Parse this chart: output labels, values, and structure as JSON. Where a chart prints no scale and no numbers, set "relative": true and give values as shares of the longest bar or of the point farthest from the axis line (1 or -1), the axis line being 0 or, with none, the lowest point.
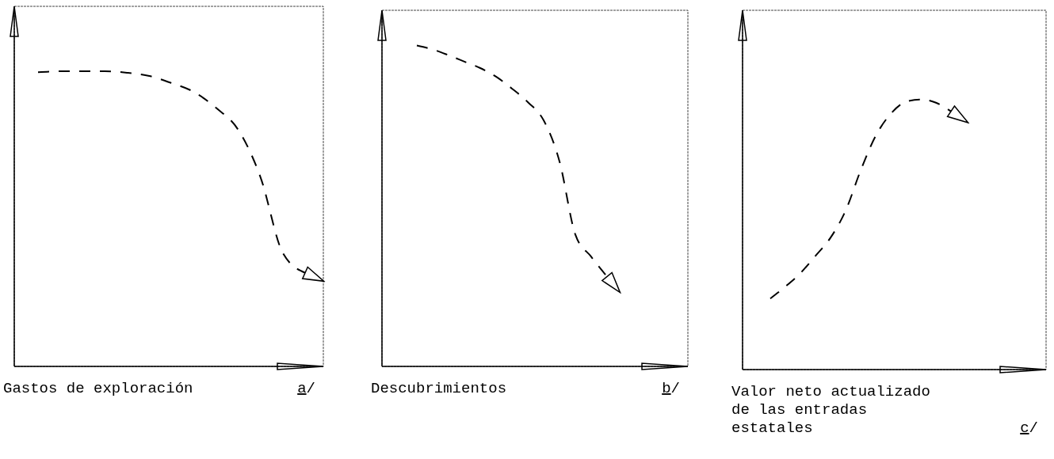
{
  "chart_data": [
    {
      "type": "line",
      "relative": true,
      "categories": [
        null,
        null,
        null,
        null,
        null,
        null,
        null,
        null,
        null,
        null,
        null,
        null,
        null
      ],
      "xlabel": "Gastos de exploración",
      "annotations": [
        "a/"
      ],
      "line_style": "dashed",
      "series": [
        {
          "color": "#000000",
          "values": [
            0.997,
            1,
            1,
            1,
            0.995,
            0.984,
            0.96,
            0.93,
            0.876,
            0.801,
            0.64,
            0.384,
            0.317
          ]
        }
      ]
    },
    {
      "type": "line",
      "relative": true,
      "categories": [
        null,
        null,
        null,
        null,
        null,
        null,
        null,
        null,
        null,
        null,
        null,
        null,
        null
      ],
      "xlabel": "Descubrimientos",
      "annotations": [
        "b/"
      ],
      "line_style": "dashed",
      "series": [
        {
          "color": "#000000",
          "values": [
            1,
            0.988,
            0.97,
            0.95,
            0.93,
            0.903,
            0.866,
            0.824,
            0.767,
            0.639,
            0.411,
            0.342,
            0.28
          ]
        }
      ]
    },
    {
      "type": "line",
      "relative": true,
      "categories": [
        null,
        null,
        null,
        null,
        null,
        null,
        null,
        null,
        null,
        null,
        null,
        null,
        null
      ],
      "xlabel": "Valor neto actualizado de las entradas estatales",
      "annotations": [
        "c/"
      ],
      "line_style": "dashed",
      "series": [
        {
          "color": "#000000",
          "values": [
            0.263,
            0.307,
            0.357,
            0.421,
            0.488,
            0.588,
            0.737,
            0.865,
            0.947,
            0.991,
            1,
            0.988,
            0.956
          ]
        }
      ]
    }
  ]
}
